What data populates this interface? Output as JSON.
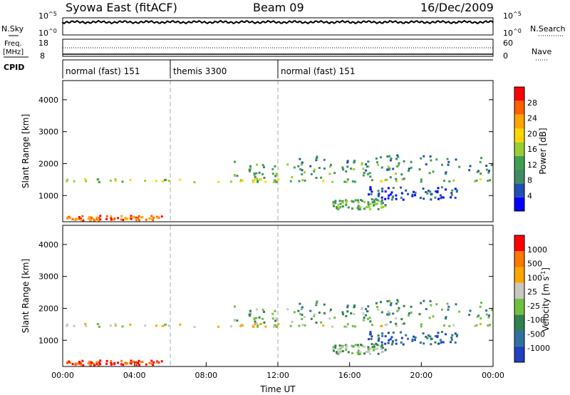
{
  "header": {
    "station": "Syowa East (fitACF)",
    "beam": "Beam 09",
    "date": "16/Dec/2009"
  },
  "left_labels": {
    "nsky": "N.Sky",
    "freq_line1": "Freq.",
    "freq_line2": "[MHz]",
    "cpid": "CPID"
  },
  "right_labels": {
    "nsearch": "N.Search",
    "nave": "Nave"
  },
  "noise_panel": {
    "left_ticks": [
      {
        "base": "10",
        "exp": "^5"
      },
      {
        "base": "10",
        "exp": "^0"
      }
    ],
    "right_ticks": [
      {
        "base": "10",
        "exp": "^5"
      },
      {
        "base": "10",
        "exp": "^0"
      }
    ]
  },
  "freq_panel": {
    "left_ticks": [
      "18",
      "8"
    ],
    "right_ticks": [
      "60",
      "0"
    ]
  },
  "cpid_segments": [
    {
      "label": "normal (fast) 151",
      "start_hour": 0,
      "end_hour": 6
    },
    {
      "label": "themis 3300",
      "start_hour": 6,
      "end_hour": 12
    },
    {
      "label": "normal (fast) 151",
      "start_hour": 12,
      "end_hour": 24
    }
  ],
  "colors": {
    "power": [
      "#0000ff",
      "#2050b4",
      "#3f8c64",
      "#40a050",
      "#9acd32",
      "#ffd700",
      "#ffa500",
      "#ff6000",
      "#ff0000"
    ],
    "velocity": [
      "#2040c0",
      "#3070a0",
      "#308050",
      "#70c040",
      "#c8c8c0",
      "#ffa500",
      "#ff7800",
      "#ff0000"
    ]
  },
  "chart_data": [
    {
      "type": "heatmap",
      "name": "Power",
      "x_range_hours": [
        0,
        24
      ],
      "ylim": [
        180,
        4600
      ],
      "xlabel": "",
      "ylabel": "Slant Range [km]",
      "yticks": [
        1000,
        2000,
        3000,
        4000
      ],
      "ytick_labels": [
        "1000",
        "2000",
        "3000",
        "4000"
      ],
      "colorbar_label": "Power [dB]",
      "colorbar_ticks": [
        "28",
        "24",
        "20",
        "16",
        "12",
        "8",
        "4"
      ]
    },
    {
      "type": "heatmap",
      "name": "Velocity",
      "x_range_hours": [
        0,
        24
      ],
      "ylim": [
        180,
        4600
      ],
      "xlabel": "Time UT",
      "ylabel": "Slant Range [km]",
      "xticks": [
        0,
        4,
        8,
        12,
        16,
        20,
        24
      ],
      "xtick_labels": [
        "00:00",
        "04:00",
        "08:00",
        "12:00",
        "16:00",
        "20:00",
        "00:00"
      ],
      "yticks": [
        1000,
        2000,
        3000,
        4000
      ],
      "ytick_labels": [
        "1000",
        "2000",
        "3000",
        "4000"
      ],
      "colorbar_label": "Velocity [m s",
      "colorbar_label_sup": "-1",
      "colorbar_label_end": "]",
      "colorbar_ticks": [
        "1000",
        "500",
        "100",
        "25",
        "-25",
        "-100",
        "-500",
        "-1000"
      ]
    }
  ]
}
